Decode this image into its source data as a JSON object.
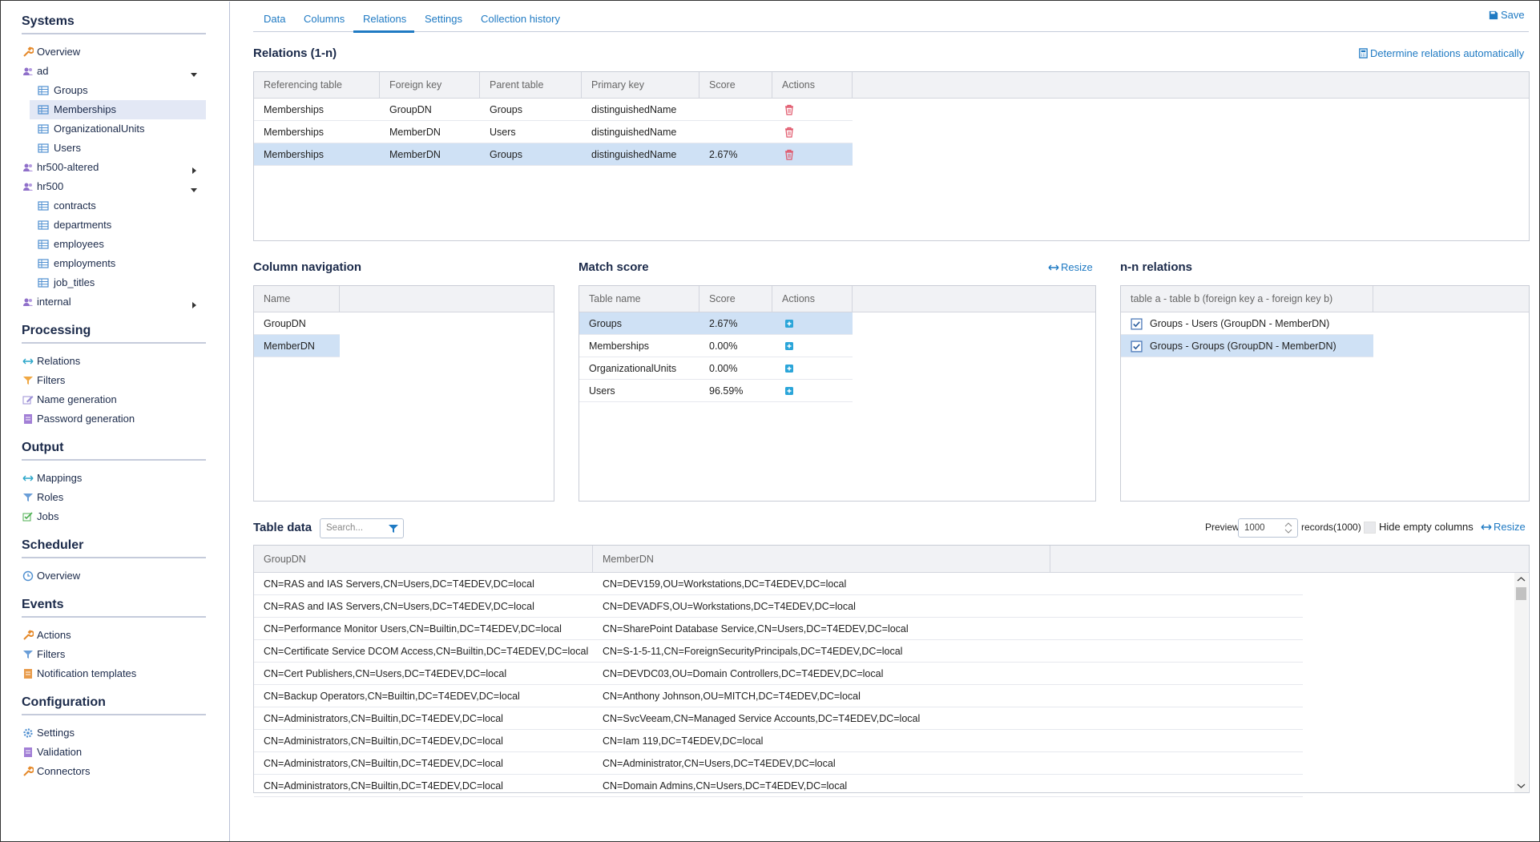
{
  "sidebar": {
    "sections": [
      {
        "title": "Systems",
        "items": [
          {
            "label": "Overview"
          },
          {
            "label": "ad",
            "children": [
              "Groups",
              "Memberships",
              "OrganizationalUnits",
              "Users"
            ]
          },
          {
            "label": "hr500-altered"
          },
          {
            "label": "hr500",
            "children": [
              "contracts",
              "departments",
              "employees",
              "employments",
              "job_titles"
            ]
          },
          {
            "label": "internal"
          }
        ]
      },
      {
        "title": "Processing",
        "items": [
          {
            "label": "Relations"
          },
          {
            "label": "Filters"
          },
          {
            "label": "Name generation"
          },
          {
            "label": "Password generation"
          }
        ]
      },
      {
        "title": "Output",
        "items": [
          {
            "label": "Mappings"
          },
          {
            "label": "Roles"
          },
          {
            "label": "Jobs"
          }
        ]
      },
      {
        "title": "Scheduler",
        "items": [
          {
            "label": "Overview"
          }
        ]
      },
      {
        "title": "Events",
        "items": [
          {
            "label": "Actions"
          },
          {
            "label": "Filters"
          },
          {
            "label": "Notification templates"
          }
        ]
      },
      {
        "title": "Configuration",
        "items": [
          {
            "label": "Settings"
          },
          {
            "label": "Validation"
          },
          {
            "label": "Connectors"
          }
        ]
      }
    ]
  },
  "tabs": [
    "Data",
    "Columns",
    "Relations",
    "Settings",
    "Collection history"
  ],
  "save": "Save",
  "relations": {
    "title": "Relations (1-n)",
    "auto_link": "Determine relations automatically",
    "columns": [
      "Referencing table",
      "Foreign key",
      "Parent table",
      "Primary key",
      "Score",
      "Actions"
    ],
    "rows": [
      {
        "referencing_table": "Memberships",
        "foreign_key": "GroupDN",
        "parent_table": "Groups",
        "primary_key": "distinguishedName"
      },
      {
        "referencing_table": "Memberships",
        "foreign_key": "MemberDN",
        "parent_table": "Users",
        "primary_key": "distinguishedName"
      },
      {
        "referencing_table": "Memberships",
        "foreign_key": "MemberDN",
        "parent_table": "Groups",
        "primary_key": "distinguishedName",
        "score": "2.67%"
      }
    ]
  },
  "column_navigation": {
    "title": "Column navigation",
    "columns": [
      "Name"
    ],
    "rows": [
      "GroupDN",
      "MemberDN"
    ]
  },
  "match_score": {
    "title": "Match score",
    "resize": "Resize",
    "columns": [
      "Table name",
      "Score",
      "Actions"
    ],
    "rows": [
      {
        "table_name": "Groups",
        "score": "2.67%"
      },
      {
        "table_name": "Memberships",
        "score": "0.00%"
      },
      {
        "table_name": "OrganizationalUnits",
        "score": "0.00%"
      },
      {
        "table_name": "Users",
        "score": "96.59%"
      }
    ]
  },
  "nn_relations": {
    "title": "n-n relations",
    "columns": [
      "table a - table b (foreign key a - foreign key b)"
    ],
    "rows": [
      "Groups - Users (GroupDN - MemberDN)",
      "Groups - Groups (GroupDN - MemberDN)"
    ]
  },
  "table_data": {
    "title": "Table data",
    "search_placeholder": "Search...",
    "preview_label": "Preview",
    "preview_value": "1000",
    "records": "records(1000)",
    "hide_empty": "Hide empty columns",
    "resize": "Resize",
    "columns": [
      "GroupDN",
      "MemberDN"
    ],
    "rows": [
      [
        "CN=RAS and IAS Servers,CN=Users,DC=T4EDEV,DC=local",
        "CN=DEV159,OU=Workstations,DC=T4EDEV,DC=local"
      ],
      [
        "CN=RAS and IAS Servers,CN=Users,DC=T4EDEV,DC=local",
        "CN=DEVADFS,OU=Workstations,DC=T4EDEV,DC=local"
      ],
      [
        "CN=Performance Monitor Users,CN=Builtin,DC=T4EDEV,DC=local",
        "CN=SharePoint Database Service,CN=Users,DC=T4EDEV,DC=local"
      ],
      [
        "CN=Certificate Service DCOM Access,CN=Builtin,DC=T4EDEV,DC=local",
        "CN=S-1-5-11,CN=ForeignSecurityPrincipals,DC=T4EDEV,DC=local"
      ],
      [
        "CN=Cert Publishers,CN=Users,DC=T4EDEV,DC=local",
        "CN=DEVDC03,OU=Domain Controllers,DC=T4EDEV,DC=local"
      ],
      [
        "CN=Backup Operators,CN=Builtin,DC=T4EDEV,DC=local",
        "CN=Anthony Johnson,OU=MITCH,DC=T4EDEV,DC=local"
      ],
      [
        "CN=Administrators,CN=Builtin,DC=T4EDEV,DC=local",
        "CN=SvcVeeam,CN=Managed Service Accounts,DC=T4EDEV,DC=local"
      ],
      [
        "CN=Administrators,CN=Builtin,DC=T4EDEV,DC=local",
        "CN=Iam 119,DC=T4EDEV,DC=local"
      ],
      [
        "CN=Administrators,CN=Builtin,DC=T4EDEV,DC=local",
        "CN=Administrator,CN=Users,DC=T4EDEV,DC=local"
      ],
      [
        "CN=Administrators,CN=Builtin,DC=T4EDEV,DC=local",
        "CN=Domain Admins,CN=Users,DC=T4EDEV,DC=local"
      ]
    ]
  }
}
